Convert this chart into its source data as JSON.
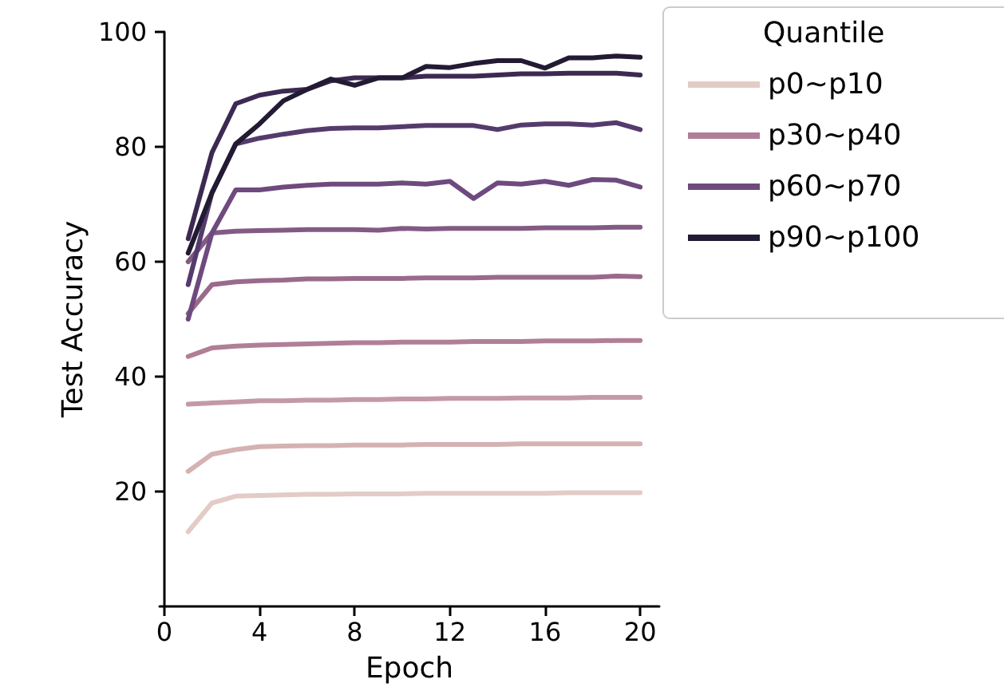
{
  "chart_data": {
    "type": "line",
    "xlabel": "Epoch",
    "ylabel": "Test Accuracy",
    "legend_title": "Quantile",
    "legend": "top right",
    "grid": false,
    "marker": "none",
    "line_style": "solid",
    "x": [
      1,
      2,
      3,
      4,
      5,
      6,
      7,
      8,
      9,
      10,
      11,
      12,
      13,
      14,
      15,
      16,
      17,
      18,
      19,
      20
    ],
    "xlim": [
      -0.2,
      20.8
    ],
    "xticks": [
      0,
      4,
      8,
      12,
      16,
      20
    ],
    "ylim": [
      0,
      100
    ],
    "yticks": [
      20,
      40,
      60,
      80,
      100
    ],
    "series": [
      {
        "name": "p0~p10",
        "color": "#e3ccc6",
        "values": [
          13,
          18,
          19.2,
          19.3,
          19.4,
          19.5,
          19.5,
          19.6,
          19.6,
          19.6,
          19.7,
          19.7,
          19.7,
          19.7,
          19.7,
          19.7,
          19.8,
          19.8,
          19.8,
          19.8
        ]
      },
      {
        "color": "#d5b2b2",
        "values": [
          23.5,
          26.5,
          27.3,
          27.8,
          27.9,
          28,
          28,
          28.1,
          28.1,
          28.1,
          28.2,
          28.2,
          28.2,
          28.2,
          28.3,
          28.3,
          28.3,
          28.3,
          28.3,
          28.3
        ]
      },
      {
        "color": "#c499a6",
        "values": [
          35.2,
          35.4,
          35.6,
          35.8,
          35.8,
          35.9,
          35.9,
          36,
          36,
          36.1,
          36.1,
          36.2,
          36.2,
          36.2,
          36.3,
          36.3,
          36.3,
          36.4,
          36.4,
          36.4
        ]
      },
      {
        "name": "p30~p40",
        "color": "#b07f97",
        "values": [
          43.5,
          45,
          45.3,
          45.5,
          45.6,
          45.7,
          45.8,
          45.9,
          45.9,
          46,
          46,
          46,
          46.1,
          46.1,
          46.1,
          46.2,
          46.2,
          46.2,
          46.3,
          46.3
        ]
      },
      {
        "color": "#9a6a8b",
        "values": [
          51,
          56,
          56.5,
          56.7,
          56.8,
          57,
          57,
          57.1,
          57.1,
          57.1,
          57.2,
          57.2,
          57.2,
          57.3,
          57.3,
          57.3,
          57.3,
          57.3,
          57.5,
          57.4
        ]
      },
      {
        "color": "#835a84",
        "values": [
          60,
          65,
          65.3,
          65.4,
          65.5,
          65.6,
          65.6,
          65.6,
          65.5,
          65.8,
          65.7,
          65.8,
          65.8,
          65.8,
          65.8,
          65.9,
          65.9,
          65.9,
          66,
          66
        ]
      },
      {
        "name": "p60~p70",
        "color": "#6e4a7e",
        "values": [
          50,
          65,
          72.5,
          72.5,
          73,
          73.3,
          73.5,
          73.5,
          73.5,
          73.7,
          73.5,
          74,
          71,
          73.7,
          73.5,
          74,
          73.3,
          74.3,
          74.2,
          73
        ]
      },
      {
        "color": "#553b6d",
        "values": [
          56,
          72,
          80.5,
          81.5,
          82.2,
          82.8,
          83.2,
          83.3,
          83.3,
          83.5,
          83.7,
          83.7,
          83.7,
          83,
          83.8,
          84,
          84,
          83.8,
          84.2,
          83
        ]
      },
      {
        "color": "#3c2a52",
        "values": [
          64,
          79,
          87.5,
          89,
          89.7,
          90,
          91.5,
          92,
          92,
          92,
          92.3,
          92.3,
          92.3,
          92.5,
          92.7,
          92.7,
          92.8,
          92.8,
          92.8,
          92.5
        ]
      },
      {
        "name": "p90~p100",
        "color": "#231a33",
        "values": [
          61.5,
          72,
          80.5,
          84,
          88,
          90,
          91.8,
          90.7,
          92,
          92,
          94,
          93.8,
          94.5,
          95,
          95,
          93.7,
          95.5,
          95.5,
          95.8,
          95.6
        ]
      }
    ]
  }
}
